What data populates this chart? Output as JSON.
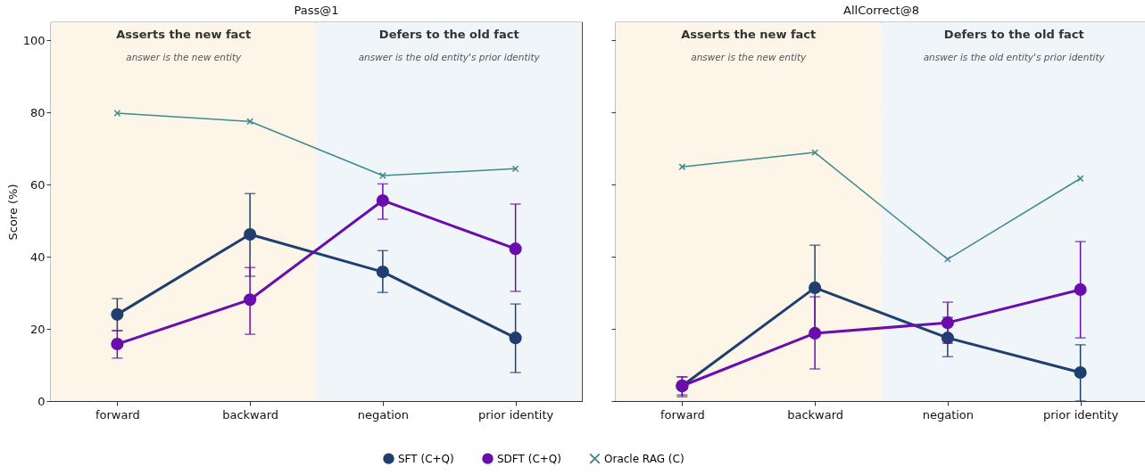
{
  "chart_data": [
    {
      "type": "line",
      "title": "Pass@1",
      "ylabel": "Score (%)",
      "categories": [
        "forward",
        "backward",
        "negation",
        "prior identity"
      ],
      "ylim": [
        0,
        105
      ],
      "yticks": [
        0,
        20,
        40,
        60,
        80,
        100
      ],
      "grid": "y",
      "legend": "bottom",
      "bands": [
        {
          "axis": "x",
          "from": "forward",
          "to": "backward",
          "label": "Asserts the new fact",
          "color": "#fdf5e8"
        },
        {
          "axis": "x",
          "from": "negation",
          "to": "prior identity",
          "label": "Defers to the old fact",
          "color": "#eff5f8"
        }
      ],
      "annotations": [
        "answer is the new entity",
        "answer is the old entity's prior identity"
      ],
      "series": [
        {
          "name": "SFT (C+Q)",
          "color": "#1f3f6e",
          "marker": "circle",
          "values": [
            24.0,
            46.2,
            35.8,
            17.5
          ],
          "errors": [
            [
              19.5,
              28.4
            ],
            [
              34.6,
              57.5
            ],
            [
              30.1,
              41.7
            ],
            [
              7.9,
              26.9
            ]
          ]
        },
        {
          "name": "SDFT (C+Q)",
          "color": "#6a0dad",
          "marker": "circle",
          "values": [
            15.8,
            28.1,
            55.6,
            42.2
          ],
          "errors": [
            [
              11.9,
              19.5
            ],
            [
              18.5,
              37.0
            ],
            [
              50.4,
              60.2
            ],
            [
              30.4,
              54.6
            ]
          ]
        },
        {
          "name": "Oracle RAG (C)",
          "color": "#3f8a8f",
          "marker": "cross",
          "values": [
            79.8,
            77.5,
            62.5,
            64.4
          ]
        }
      ]
    },
    {
      "type": "line",
      "title": "AllCorrect@8",
      "categories": [
        "forward",
        "backward",
        "negation",
        "prior identity"
      ],
      "ylim": [
        0,
        105
      ],
      "yticks": [
        0,
        20,
        40,
        60,
        80,
        100
      ],
      "grid": "y",
      "tick_labels": "x",
      "bands": [
        {
          "axis": "x",
          "from": "forward",
          "to": "backward",
          "label": "Asserts the new fact",
          "color": "#fdf5e8"
        },
        {
          "axis": "x",
          "from": "negation",
          "to": "prior identity",
          "label": "Defers to the old fact",
          "color": "#eff5f8"
        }
      ],
      "annotations": [
        "answer is the new entity",
        "answer is the old entity's prior identity"
      ],
      "series": [
        {
          "color": "#1f3f6e",
          "marker": "circle",
          "values": [
            4.2,
            31.4,
            17.5,
            7.9
          ],
          "errors": [
            [
              1.7,
              6.7
            ],
            [
              19.6,
              43.2
            ],
            [
              12.3,
              23.2
            ],
            [
              0,
              15.6
            ]
          ]
        },
        {
          "color": "#6a0dad",
          "marker": "circle",
          "values": [
            4.2,
            18.8,
            21.7,
            30.9
          ],
          "errors": [
            [
              1.2,
              6.7
            ],
            [
              8.9,
              28.9
            ],
            [
              16.0,
              27.4
            ],
            [
              17.5,
              44.2
            ]
          ]
        },
        {
          "color": "#3f8a8f",
          "marker": "cross",
          "values": [
            64.9,
            68.9,
            39.3,
            61.7
          ]
        }
      ]
    }
  ]
}
